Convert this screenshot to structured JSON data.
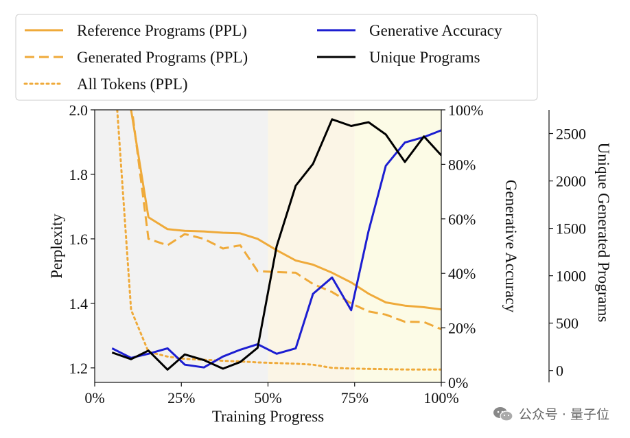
{
  "chart_data": {
    "type": "line",
    "x_axis": {
      "label": "Training Progress",
      "range": [
        0,
        100
      ],
      "ticks": [
        0,
        25,
        50,
        75,
        100
      ],
      "tick_labels": [
        "0%",
        "25%",
        "50%",
        "75%",
        "100%"
      ]
    },
    "y_axes": {
      "left": {
        "label": "Perplexity",
        "range": [
          1.155,
          2.0
        ],
        "ticks": [
          1.2,
          1.4,
          1.6,
          1.8,
          2.0
        ],
        "tick_labels": [
          "1.2",
          "1.4",
          "1.6",
          "1.8",
          "2.0"
        ]
      },
      "right": {
        "label": "Generative Accuracy",
        "range": [
          0,
          100
        ],
        "ticks": [
          0,
          20,
          40,
          60,
          80,
          100
        ],
        "tick_labels": [
          "0%",
          "20%",
          "40%",
          "60%",
          "80%",
          "100%"
        ]
      },
      "far_right": {
        "label": "Unique Generated Programs",
        "range": [
          -125,
          2750
        ],
        "ticks": [
          0,
          500,
          1000,
          1500,
          2000,
          2500
        ],
        "tick_labels": [
          "0",
          "500",
          "1000",
          "1500",
          "2000",
          "2500"
        ]
      }
    },
    "background_bands": [
      {
        "from": 0,
        "to": 50,
        "color": "#f2f2f2"
      },
      {
        "from": 50,
        "to": 75,
        "color": "#fbf5e6"
      },
      {
        "from": 75,
        "to": 100,
        "color": "#fcfbe6"
      }
    ],
    "series": [
      {
        "name": "Reference Programs (PPL)",
        "axis": "left",
        "color": "#efaa3a",
        "style": "solid",
        "x": [
          10.5,
          15.5,
          21,
          26,
          31.5,
          37,
          42,
          47,
          52.5,
          58,
          63,
          68.5,
          74,
          79,
          84,
          89.5,
          95,
          100
        ],
        "values": [
          2.0,
          1.667,
          1.63,
          1.625,
          1.623,
          1.619,
          1.617,
          1.6,
          1.565,
          1.533,
          1.52,
          1.495,
          1.465,
          1.43,
          1.403,
          1.393,
          1.388,
          1.381
        ]
      },
      {
        "name": "Generated Programs (PPL)",
        "axis": "left",
        "color": "#efaa3a",
        "style": "dashed",
        "x": [
          11,
          15.5,
          21,
          26,
          31.5,
          37,
          42,
          47,
          52.5,
          58,
          63,
          68.5,
          74,
          79,
          84,
          89.5,
          95,
          100
        ],
        "values": [
          1.98,
          1.6,
          1.58,
          1.615,
          1.6,
          1.57,
          1.58,
          1.5,
          1.497,
          1.495,
          1.46,
          1.435,
          1.4,
          1.375,
          1.365,
          1.343,
          1.342,
          1.32
        ]
      },
      {
        "name": "All Tokens (PPL)",
        "axis": "left",
        "color": "#efaa3a",
        "style": "dotted",
        "x": [
          6.5,
          10.5,
          15.5,
          21,
          26,
          31.5,
          37,
          42,
          47,
          52.5,
          58,
          63,
          68.5,
          74,
          79,
          84,
          89.5,
          95,
          100
        ],
        "values": [
          2.0,
          1.38,
          1.25,
          1.235,
          1.228,
          1.225,
          1.222,
          1.22,
          1.217,
          1.215,
          1.213,
          1.21,
          1.2,
          1.198,
          1.197,
          1.196,
          1.195,
          1.195,
          1.195
        ]
      },
      {
        "name": "Generative Accuracy",
        "axis": "right",
        "color": "#1c1ed1",
        "style": "solid",
        "x": [
          5,
          10.5,
          15.5,
          21,
          26,
          31.5,
          37,
          42,
          47,
          52.5,
          58,
          63,
          68.5,
          74,
          79,
          84,
          89.5,
          95,
          100
        ],
        "values": [
          12.5,
          9,
          10.5,
          12.5,
          6.5,
          5.5,
          9.5,
          12,
          14,
          10.5,
          12.5,
          32.5,
          38.5,
          26.5,
          55.5,
          79.5,
          88,
          90,
          92.5
        ]
      },
      {
        "name": "Unique Programs",
        "axis": "far_right",
        "color": "#000000",
        "style": "solid",
        "x": [
          5,
          10.5,
          15.5,
          21,
          26,
          31.5,
          37,
          42,
          47,
          52.5,
          58,
          63,
          68.5,
          74,
          79,
          84,
          89.5,
          95,
          100
        ],
        "values": [
          190,
          120,
          210,
          10,
          170,
          110,
          20,
          90,
          240,
          1310,
          1950,
          2180,
          2650,
          2580,
          2620,
          2490,
          2200,
          2470,
          2270
        ]
      }
    ],
    "legend": {
      "placement": "top",
      "entries": [
        {
          "label": "Reference Programs (PPL)",
          "color": "#efaa3a",
          "style": "solid"
        },
        {
          "label": "Generated Programs (PPL)",
          "color": "#efaa3a",
          "style": "dashed"
        },
        {
          "label": "All Tokens (PPL)",
          "color": "#efaa3a",
          "style": "dotted"
        },
        {
          "label": "Generative Accuracy",
          "color": "#1c1ed1",
          "style": "solid"
        },
        {
          "label": "Unique Programs",
          "color": "#000000",
          "style": "solid"
        }
      ]
    }
  },
  "watermark": {
    "text": "公众号 · 量子位"
  }
}
